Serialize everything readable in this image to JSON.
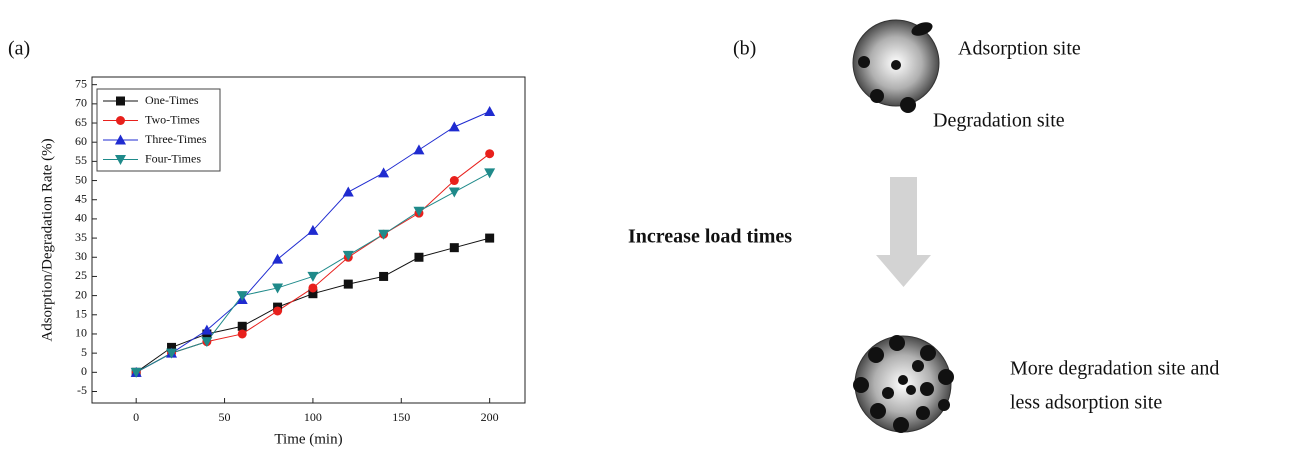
{
  "panel_a": "(a)",
  "panel_b": "(b)",
  "chart_data": {
    "type": "line",
    "xlabel": "Time (min)",
    "ylabel": "Adsorption/Degradation Rate (%)",
    "x": [
      0,
      20,
      40,
      60,
      80,
      100,
      120,
      140,
      160,
      180,
      200
    ],
    "series": [
      {
        "name": "One-Times",
        "color": "#111111",
        "marker": "square",
        "values": [
          0,
          6.5,
          10,
          12,
          17,
          20.5,
          23,
          25,
          30,
          32.5,
          35
        ]
      },
      {
        "name": "Two-Times",
        "color": "#e8201c",
        "marker": "circle",
        "values": [
          0,
          5,
          8,
          10,
          16,
          22,
          30,
          36,
          41.5,
          50,
          57
        ]
      },
      {
        "name": "Three-Times",
        "color": "#1f2bd0",
        "marker": "triangle",
        "values": [
          0,
          5,
          11,
          19,
          29.5,
          37,
          47,
          52,
          58,
          64,
          68
        ]
      },
      {
        "name": "Four-Times",
        "color": "#1f8a8a",
        "marker": "triangle-down",
        "values": [
          0,
          5,
          8,
          20,
          22,
          25,
          30.5,
          36,
          42,
          47,
          52
        ]
      }
    ],
    "xlim": [
      -25,
      220
    ],
    "xticks": [
      0,
      50,
      100,
      150,
      200
    ],
    "ylim": [
      -8,
      77
    ],
    "yticks": [
      -5,
      0,
      5,
      10,
      15,
      20,
      25,
      30,
      35,
      40,
      45,
      50,
      55,
      60,
      65,
      70,
      75
    ],
    "legend": "upper left",
    "grid": false
  },
  "diagram": {
    "top_label_1": "Adsorption site",
    "top_label_2": "Degradation site",
    "arrow_label": "Increase load times",
    "bottom_label": [
      "More degradation site and",
      "less adsorption site"
    ]
  }
}
